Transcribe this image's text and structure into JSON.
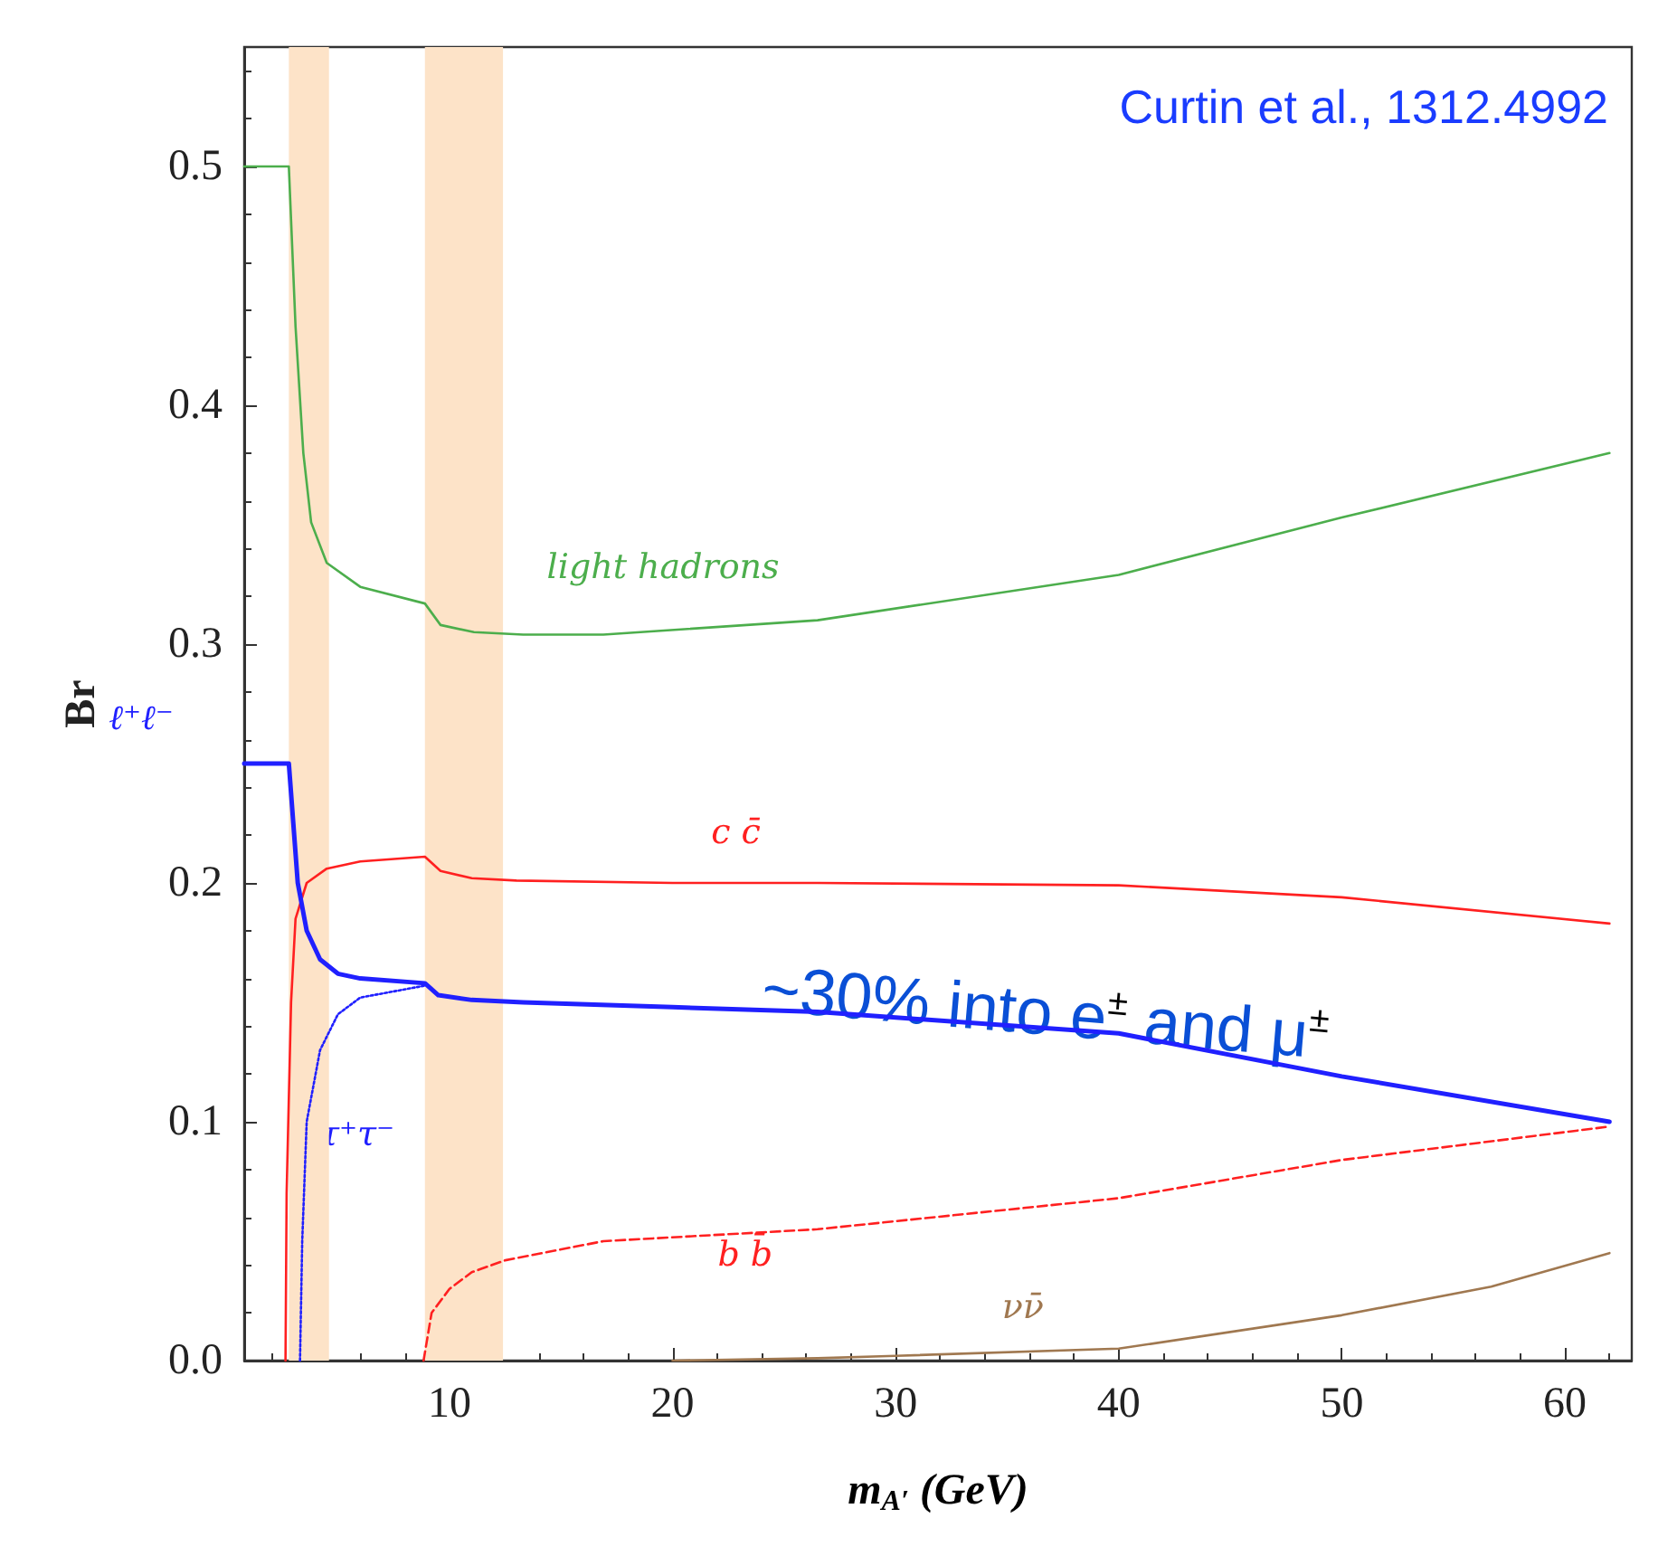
{
  "chart_data": {
    "type": "line",
    "xlabel": "m$_{A′}$ (GeV)",
    "ylabel": "Br",
    "xlim": [
      0.8,
      63
    ],
    "xticks": [
      10,
      20,
      30,
      40,
      50,
      60
    ],
    "ylim": [
      0,
      0.55
    ],
    "yticks": [
      {
        "value": 0,
        "label": "0.0"
      },
      0.1,
      0.2,
      0.3,
      0.4,
      0.5
    ],
    "grid": false,
    "legend": false,
    "marker": "none",
    "series": [
      {
        "name": "light hadrons",
        "color": "#4cae4c",
        "line_style": "solid",
        "x": [
          0.8,
          2.8,
          3.1,
          3.45,
          3.8,
          4.5,
          6,
          8.9,
          9.6,
          11.1,
          13.3,
          16.9,
          26.5,
          40,
          50,
          62
        ],
        "values": [
          0.5,
          0.5,
          0.433,
          0.38,
          0.351,
          0.334,
          0.324,
          0.317,
          0.308,
          0.305,
          0.304,
          0.304,
          0.31,
          0.329,
          0.353,
          0.38
        ]
      },
      {
        "name": "c c̄",
        "color": "#ff2020",
        "line_style": "solid",
        "x": [
          2.65,
          2.7,
          2.9,
          3.1,
          3.6,
          4.5,
          6,
          8.9,
          9.6,
          11,
          13,
          20,
          26.5,
          40,
          50,
          62
        ],
        "values": [
          0,
          0.07,
          0.15,
          0.185,
          0.2,
          0.206,
          0.209,
          0.211,
          0.205,
          0.202,
          0.201,
          0.2,
          0.2,
          0.199,
          0.194,
          0.183
        ]
      },
      {
        "name": "ℓ⁺ℓ⁻",
        "color": "#2020ff",
        "line_style": "solid",
        "x": [
          0.8,
          2.8,
          3.0,
          3.2,
          3.6,
          4.2,
          5,
          6,
          8.9,
          9.5,
          11,
          13.3,
          20,
          26.5,
          40,
          50,
          62
        ],
        "values": [
          0.25,
          0.25,
          0.225,
          0.2,
          0.18,
          0.168,
          0.162,
          0.16,
          0.158,
          0.153,
          0.151,
          0.15,
          0.148,
          0.146,
          0.137,
          0.119,
          0.1
        ]
      },
      {
        "name": "τ⁺τ⁻",
        "color": "#2020ff",
        "line_style": "dotted",
        "x": [
          3.3,
          3.4,
          3.6,
          4.2,
          5,
          6,
          8.9
        ],
        "values": [
          0,
          0.05,
          0.1,
          0.13,
          0.145,
          0.152,
          0.157
        ]
      },
      {
        "name": "b b̄",
        "color": "#ff2020",
        "line_style": "dashed",
        "x": [
          8.84,
          9.2,
          10,
          11,
          12.5,
          16.9,
          26.5,
          40,
          50,
          62
        ],
        "values": [
          0,
          0.02,
          0.03,
          0.037,
          0.042,
          0.05,
          0.055,
          0.068,
          0.084,
          0.098
        ]
      },
      {
        "name": "νν̄",
        "color": "#a07850",
        "line_style": "solid",
        "x": [
          20,
          26.5,
          30,
          40,
          50,
          56.7,
          62
        ],
        "values": [
          0,
          0.001,
          0.002,
          0.005,
          0.019,
          0.031,
          0.045
        ]
      }
    ],
    "bands": [
      {
        "axis": "x",
        "from": 2.8,
        "to": 4.6,
        "color": "#fde3c8"
      },
      {
        "axis": "x",
        "from": 8.9,
        "to": 12.4,
        "color": "#fde3c8"
      }
    ],
    "annotations": [
      "Curtin et al., 1312.4992",
      "~30% into e$^{±}$ and μ$^{±}$"
    ]
  }
}
